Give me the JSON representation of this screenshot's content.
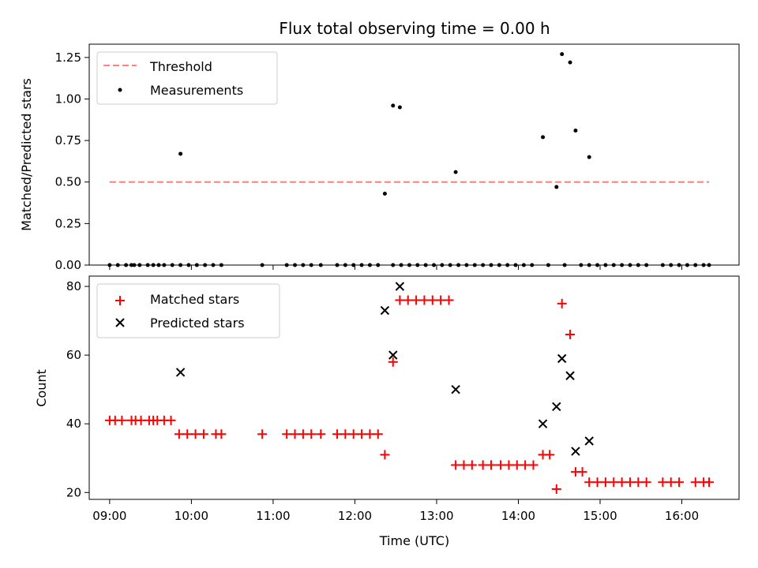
{
  "chart_data": [
    {
      "type": "scatter",
      "title": "Flux total observing time = 0.00 h",
      "xlabel": "",
      "ylabel": "Matched/Predicted stars",
      "xlim": [
        "08:45",
        "16:42"
      ],
      "ylim": [
        0,
        1.33
      ],
      "yticks": [
        "0.00",
        "0.25",
        "0.50",
        "0.75",
        "1.00",
        "1.25"
      ],
      "ytick_values": [
        0,
        0.25,
        0.5,
        0.75,
        1.0,
        1.25
      ],
      "grid": false,
      "legend_position": "upper left",
      "threshold": {
        "name": "Threshold",
        "value": 0.5,
        "x_range": [
          "09:00",
          "16:20"
        ],
        "color": "#ff7f7f"
      },
      "series": [
        {
          "name": "Measurements",
          "marker": "dot",
          "color": "#000000",
          "points": [
            [
              "09:00",
              0
            ],
            [
              "09:06",
              0
            ],
            [
              "09:12",
              0
            ],
            [
              "09:16",
              0
            ],
            [
              "09:18",
              0
            ],
            [
              "09:22",
              0
            ],
            [
              "09:28",
              0
            ],
            [
              "09:32",
              0
            ],
            [
              "09:36",
              0
            ],
            [
              "09:40",
              0
            ],
            [
              "09:46",
              0
            ],
            [
              "09:52",
              0
            ],
            [
              "09:58",
              0
            ],
            [
              "10:04",
              0
            ],
            [
              "10:10",
              0
            ],
            [
              "10:16",
              0
            ],
            [
              "10:22",
              0
            ],
            [
              "10:52",
              0
            ],
            [
              "11:10",
              0
            ],
            [
              "11:16",
              0
            ],
            [
              "11:22",
              0
            ],
            [
              "11:28",
              0
            ],
            [
              "11:35",
              0
            ],
            [
              "11:47",
              0
            ],
            [
              "11:53",
              0
            ],
            [
              "11:59",
              0
            ],
            [
              "12:05",
              0
            ],
            [
              "12:11",
              0
            ],
            [
              "12:17",
              0
            ],
            [
              "12:28",
              0
            ],
            [
              "12:34",
              0
            ],
            [
              "12:40",
              0
            ],
            [
              "12:46",
              0
            ],
            [
              "12:52",
              0
            ],
            [
              "12:58",
              0
            ],
            [
              "13:04",
              0
            ],
            [
              "13:10",
              0
            ],
            [
              "13:16",
              0
            ],
            [
              "13:22",
              0
            ],
            [
              "13:28",
              0
            ],
            [
              "13:34",
              0
            ],
            [
              "13:40",
              0
            ],
            [
              "13:46",
              0
            ],
            [
              "13:52",
              0
            ],
            [
              "13:58",
              0
            ],
            [
              "14:04",
              0
            ],
            [
              "14:10",
              0
            ],
            [
              "14:22",
              0
            ],
            [
              "14:34",
              0
            ],
            [
              "14:46",
              0
            ],
            [
              "14:52",
              0
            ],
            [
              "14:58",
              0
            ],
            [
              "15:04",
              0
            ],
            [
              "15:10",
              0
            ],
            [
              "15:16",
              0
            ],
            [
              "15:22",
              0
            ],
            [
              "15:28",
              0
            ],
            [
              "15:34",
              0
            ],
            [
              "15:46",
              0
            ],
            [
              "15:52",
              0
            ],
            [
              "15:58",
              0
            ],
            [
              "16:04",
              0
            ],
            [
              "16:10",
              0
            ],
            [
              "16:16",
              0
            ],
            [
              "16:20",
              0
            ],
            [
              "09:52",
              0.67
            ],
            [
              "12:22",
              0.43
            ],
            [
              "12:28",
              0.96
            ],
            [
              "12:33",
              0.95
            ],
            [
              "13:14",
              0.56
            ],
            [
              "14:18",
              0.77
            ],
            [
              "14:28",
              0.47
            ],
            [
              "14:32",
              1.27
            ],
            [
              "14:38",
              1.22
            ],
            [
              "14:42",
              0.81
            ],
            [
              "14:52",
              0.65
            ]
          ]
        }
      ]
    },
    {
      "type": "scatter",
      "xlabel": "Time (UTC)",
      "ylabel": "Count",
      "xlim": [
        "08:45",
        "16:42"
      ],
      "ylim": [
        18,
        83
      ],
      "yticks": [
        "20",
        "40",
        "60",
        "80"
      ],
      "ytick_values": [
        20,
        40,
        60,
        80
      ],
      "xticks": [
        "09:00",
        "10:00",
        "11:00",
        "12:00",
        "13:00",
        "14:00",
        "15:00",
        "16:00"
      ],
      "grid": false,
      "legend_position": "upper left",
      "series": [
        {
          "name": "Matched stars",
          "marker": "plus",
          "color": "#ff0000",
          "points": [
            [
              "09:00",
              41
            ],
            [
              "09:04",
              41
            ],
            [
              "09:09",
              41
            ],
            [
              "09:16",
              41
            ],
            [
              "09:19",
              41
            ],
            [
              "09:23",
              41
            ],
            [
              "09:29",
              41
            ],
            [
              "09:32",
              41
            ],
            [
              "09:35",
              41
            ],
            [
              "09:40",
              41
            ],
            [
              "09:45",
              41
            ],
            [
              "09:51",
              37
            ],
            [
              "09:57",
              37
            ],
            [
              "10:03",
              37
            ],
            [
              "10:09",
              37
            ],
            [
              "10:18",
              37
            ],
            [
              "10:22",
              37
            ],
            [
              "10:52",
              37
            ],
            [
              "11:10",
              37
            ],
            [
              "11:16",
              37
            ],
            [
              "11:22",
              37
            ],
            [
              "11:28",
              37
            ],
            [
              "11:35",
              37
            ],
            [
              "11:47",
              37
            ],
            [
              "11:53",
              37
            ],
            [
              "11:59",
              37
            ],
            [
              "12:05",
              37
            ],
            [
              "12:11",
              37
            ],
            [
              "12:17",
              37
            ],
            [
              "12:22",
              31
            ],
            [
              "12:28",
              58
            ],
            [
              "12:33",
              76
            ],
            [
              "12:39",
              76
            ],
            [
              "12:45",
              76
            ],
            [
              "12:51",
              76
            ],
            [
              "12:57",
              76
            ],
            [
              "13:03",
              76
            ],
            [
              "13:09",
              76
            ],
            [
              "13:14",
              28
            ],
            [
              "13:20",
              28
            ],
            [
              "13:26",
              28
            ],
            [
              "13:34",
              28
            ],
            [
              "13:40",
              28
            ],
            [
              "13:47",
              28
            ],
            [
              "13:53",
              28
            ],
            [
              "13:59",
              28
            ],
            [
              "14:05",
              28
            ],
            [
              "14:11",
              28
            ],
            [
              "14:18",
              31
            ],
            [
              "14:23",
              31
            ],
            [
              "14:28",
              21
            ],
            [
              "14:32",
              75
            ],
            [
              "14:38",
              66
            ],
            [
              "14:42",
              26
            ],
            [
              "14:47",
              26
            ],
            [
              "14:52",
              23
            ],
            [
              "14:58",
              23
            ],
            [
              "15:04",
              23
            ],
            [
              "15:10",
              23
            ],
            [
              "15:16",
              23
            ],
            [
              "15:22",
              23
            ],
            [
              "15:28",
              23
            ],
            [
              "15:34",
              23
            ],
            [
              "15:46",
              23
            ],
            [
              "15:52",
              23
            ],
            [
              "15:58",
              23
            ],
            [
              "16:10",
              23
            ],
            [
              "16:16",
              23
            ],
            [
              "16:20",
              23
            ]
          ]
        },
        {
          "name": "Predicted stars",
          "marker": "x",
          "color": "#000000",
          "points": [
            [
              "09:52",
              55
            ],
            [
              "12:22",
              73
            ],
            [
              "12:28",
              60
            ],
            [
              "12:33",
              80
            ],
            [
              "13:14",
              50
            ],
            [
              "14:18",
              40
            ],
            [
              "14:28",
              45
            ],
            [
              "14:32",
              59
            ],
            [
              "14:38",
              54
            ],
            [
              "14:42",
              32
            ],
            [
              "14:52",
              35
            ]
          ]
        }
      ]
    }
  ]
}
